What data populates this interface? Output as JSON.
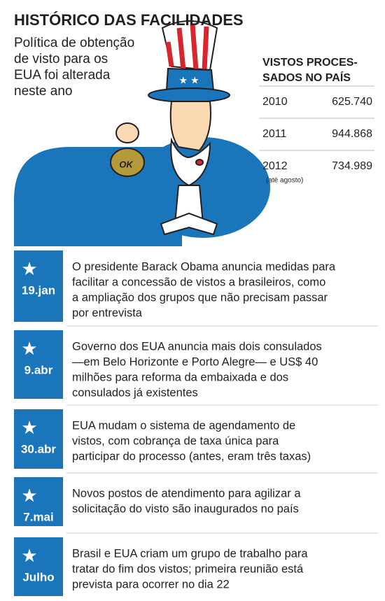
{
  "header": {
    "title": "HISTÓRICO DAS FACILIDADES",
    "subtitle": [
      "Política de obtenção",
      "de visto para os",
      "EUA foi alterada",
      "neste ano"
    ]
  },
  "illustration": {
    "bag_label": "OK"
  },
  "table": {
    "title": [
      "VISTOS PROCES-",
      "SADOS NO PAÍS"
    ],
    "rows": [
      {
        "year": "2010",
        "value": "625.740"
      },
      {
        "year": "2011",
        "value": "944.868"
      },
      {
        "year": "2012",
        "value": "734.989",
        "note": "(até agosto)"
      }
    ]
  },
  "timeline": [
    {
      "date": "19.jan",
      "text": [
        "O presidente Barack Obama anuncia medidas para",
        "facilitar a concessão de vistos a brasileiros, como",
        "a ampliação dos grupos que não precisam passar",
        "por entrevista"
      ]
    },
    {
      "date": "9.abr",
      "text": [
        "Governo dos EUA anuncia mais dois consulados",
        "—em Belo Horizonte e Porto Alegre— e US$ 40",
        "milhões para reforma da embaixada e dos",
        "consulados já existentes"
      ]
    },
    {
      "date": "30.abr",
      "text": [
        "EUA mudam o sistema de agendamento de",
        "vistos, com cobrança de taxa única para",
        "participar do processo (antes, eram três taxas)"
      ]
    },
    {
      "date": "7.mai",
      "text": [
        "Novos postos de atendimento para agilizar a",
        "solicitação do visto são inaugurados no país"
      ]
    },
    {
      "date": "Julho",
      "text": [
        "Brasil e EUA criam um grupo de trabalho para",
        "tratar do fim dos vistos; primeira reunião está",
        "prevista para ocorrer no dia 22"
      ]
    }
  ]
}
